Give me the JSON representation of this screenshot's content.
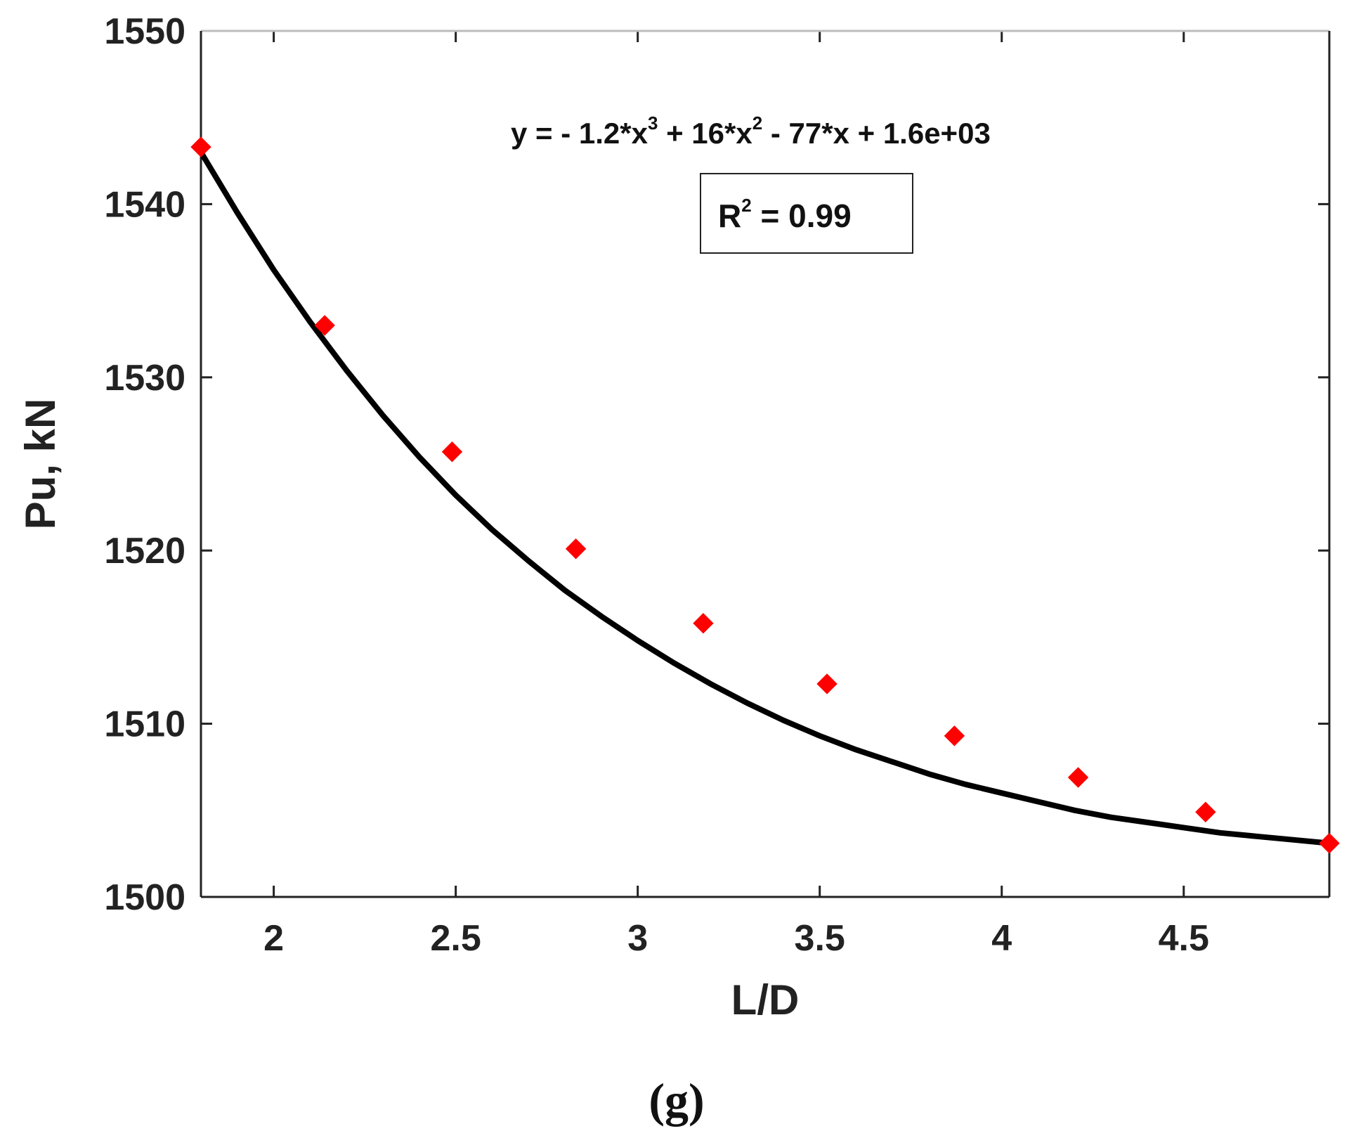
{
  "chart_data": {
    "type": "scatter",
    "xlabel": "L/D",
    "ylabel": "Pu, kN",
    "xlim": [
      1.8,
      4.9
    ],
    "ylim": [
      1500,
      1550
    ],
    "xticks": [
      2,
      2.5,
      3,
      3.5,
      4,
      4.5
    ],
    "xtick_labels": [
      "2",
      "2.5",
      "3",
      "3.5",
      "4",
      "4.5"
    ],
    "yticks": [
      1500,
      1510,
      1520,
      1530,
      1540,
      1550
    ],
    "ytick_labels": [
      "1500",
      "1510",
      "1520",
      "1530",
      "1540",
      "1550"
    ],
    "grid": false,
    "series": [
      {
        "marker": "diamond",
        "color": "#ff0000",
        "x": [
          1.8,
          2.14,
          2.49,
          2.83,
          3.18,
          3.52,
          3.87,
          4.21,
          4.56,
          4.9
        ],
        "values": [
          1543.3,
          1533.0,
          1525.7,
          1520.1,
          1515.8,
          1512.3,
          1509.3,
          1506.9,
          1504.9,
          1503.1
        ]
      }
    ],
    "fit": {
      "type": "line",
      "color": "#000000",
      "x": [
        1.8,
        1.9,
        2.0,
        2.1,
        2.2,
        2.3,
        2.4,
        2.5,
        2.6,
        2.7,
        2.8,
        2.9,
        3.0,
        3.1,
        3.2,
        3.3,
        3.4,
        3.5,
        3.6,
        3.7,
        3.8,
        3.9,
        4.0,
        4.1,
        4.2,
        4.3,
        4.4,
        4.5,
        4.6,
        4.7,
        4.8,
        4.9
      ],
      "values": [
        1543.0,
        1539.5,
        1536.2,
        1533.2,
        1530.4,
        1527.8,
        1525.4,
        1523.2,
        1521.2,
        1519.4,
        1517.7,
        1516.2,
        1514.8,
        1513.5,
        1512.3,
        1511.2,
        1510.2,
        1509.3,
        1508.5,
        1507.8,
        1507.1,
        1506.5,
        1506.0,
        1505.5,
        1505.0,
        1504.6,
        1504.3,
        1504.0,
        1503.7,
        1503.5,
        1503.3,
        1503.1
      ]
    },
    "annotations": {
      "equation_parts": [
        "y = - 1.2*x",
        "3",
        " + 16*x",
        "2",
        " - 77*x + 1.6e+03"
      ],
      "r2_label": "R",
      "r2_sup": "2",
      "r2_value": " = 0.99"
    }
  },
  "panel_label": "(g)"
}
